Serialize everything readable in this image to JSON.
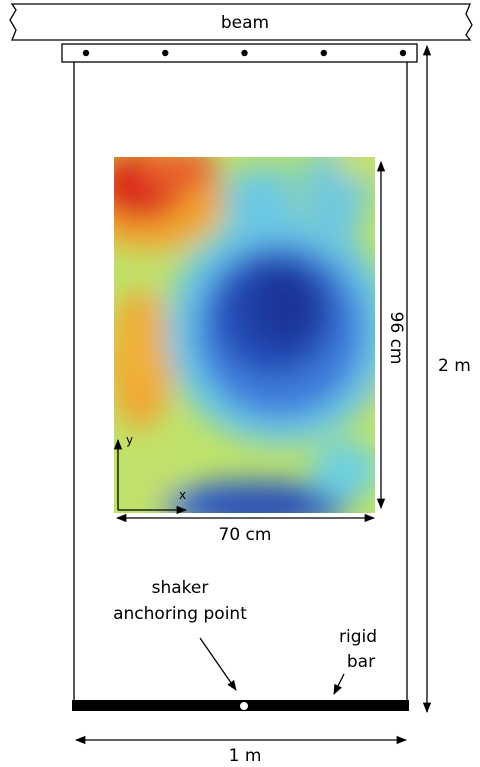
{
  "labels": {
    "beam": "beam",
    "height": "2 m",
    "width": "1 m",
    "map_height": "96 cm",
    "map_width": "70 cm",
    "axis_x": "x",
    "axis_y": "y",
    "shaker_line1": "shaker",
    "shaker_line2": "anchoring point",
    "rigid_line1": "rigid",
    "rigid_line2": "bar"
  },
  "colors": {
    "ink": "#000000",
    "beam_fill": "#ffffff",
    "bar_fill": "#000000",
    "map_deep_blue": "#1f3fa8",
    "map_blue": "#3a6fd8",
    "map_cyan": "#62c8e8",
    "map_green": "#b8e070",
    "map_yellow": "#f0d83a",
    "map_orange": "#f09a2a",
    "map_red": "#d8281e"
  },
  "beam_bolt_count": 5
}
